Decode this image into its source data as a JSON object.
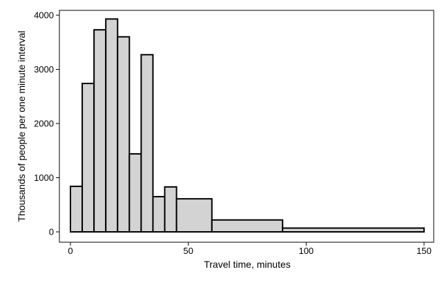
{
  "chart_data": {
    "type": "bar",
    "subtype": "histogram-variable-width",
    "title": "",
    "xlabel": "Travel time, minutes",
    "ylabel": "Thousands of people per one minute interval",
    "xlim": [
      0,
      150
    ],
    "ylim": [
      0,
      4000
    ],
    "xticks": [
      0,
      50,
      100,
      150
    ],
    "yticks": [
      0,
      1000,
      2000,
      3000,
      4000
    ],
    "grid": false,
    "bins": [
      {
        "x0": 0,
        "x1": 5,
        "value": 840
      },
      {
        "x0": 5,
        "x1": 10,
        "value": 2740
      },
      {
        "x0": 10,
        "x1": 15,
        "value": 3730
      },
      {
        "x0": 15,
        "x1": 20,
        "value": 3930
      },
      {
        "x0": 20,
        "x1": 25,
        "value": 3600
      },
      {
        "x0": 25,
        "x1": 30,
        "value": 1440
      },
      {
        "x0": 30,
        "x1": 35,
        "value": 3270
      },
      {
        "x0": 35,
        "x1": 40,
        "value": 650
      },
      {
        "x0": 40,
        "x1": 45,
        "value": 830
      },
      {
        "x0": 45,
        "x1": 60,
        "value": 610
      },
      {
        "x0": 60,
        "x1": 90,
        "value": 220
      },
      {
        "x0": 90,
        "x1": 150,
        "value": 70
      }
    ],
    "colors": {
      "bar_fill": "#d3d3d3",
      "bar_edge": "#000000",
      "frame": "#000000"
    }
  }
}
